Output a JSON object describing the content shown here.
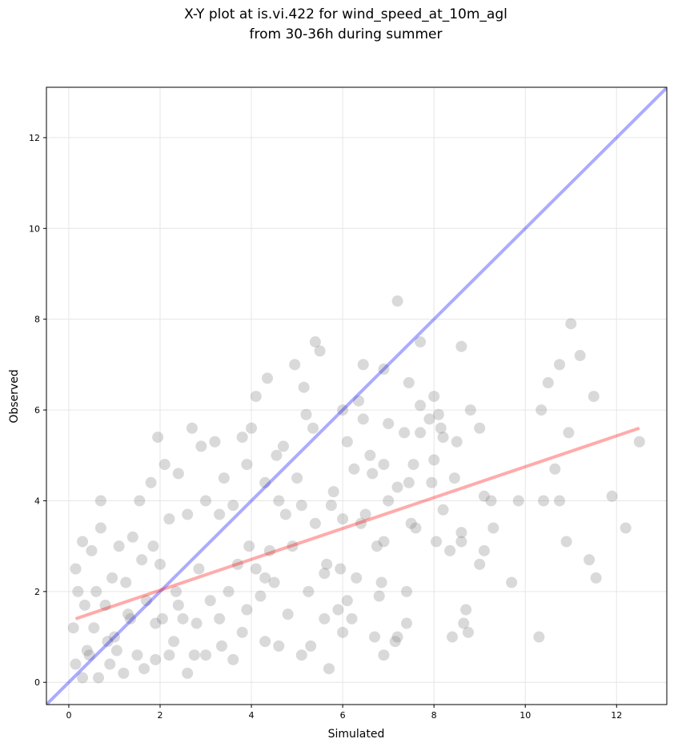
{
  "chart_data": {
    "type": "scatter",
    "title": "X-Y plot at is.vi.422 for wind_speed_at_10m_agl",
    "subtitle": "from 30-36h during summer",
    "x_label": "Simulated",
    "y_label": "Observed",
    "xlim": [
      -0.49,
      13.1
    ],
    "ylim": [
      -0.49,
      13.11
    ],
    "xticks": [
      0,
      2,
      4,
      6,
      8,
      10,
      12
    ],
    "yticks": [
      0,
      2,
      4,
      6,
      8,
      10,
      12
    ],
    "grid": true,
    "series": [
      {
        "color": "#808080",
        "x": [
          12.5,
          12.2,
          11.9,
          11.55,
          11.5,
          11.4,
          11.2,
          11.0,
          10.95,
          10.9,
          10.75,
          10.75,
          10.65,
          10.5,
          10.4,
          10.35,
          10.3,
          9.85,
          9.7,
          9.3,
          9.25,
          9.1,
          9.0,
          9.0,
          9.1,
          8.8,
          8.75,
          8.7,
          8.65,
          8.6,
          8.6,
          8.6,
          8.5,
          8.45,
          8.4,
          8.35,
          8.2,
          8.2,
          8.15,
          8.1,
          8.05,
          8.0,
          8.0,
          7.95,
          7.9,
          7.7,
          7.7,
          7.7,
          7.6,
          7.55,
          7.5,
          7.45,
          7.45,
          7.4,
          7.4,
          7.35,
          7.2,
          7.2,
          7.2,
          7.15,
          7.0,
          7.0,
          6.9,
          6.9,
          6.9,
          6.9,
          6.85,
          6.8,
          6.75,
          6.7,
          6.65,
          6.6,
          6.5,
          6.45,
          6.45,
          6.4,
          6.35,
          6.3,
          6.25,
          6.2,
          6.1,
          6.1,
          6.0,
          6.0,
          5.95,
          5.9,
          5.8,
          5.75,
          5.7,
          5.65,
          5.6,
          5.5,
          5.4,
          5.4,
          5.35,
          5.3,
          5.25,
          5.2,
          5.15,
          5.1,
          5.1,
          5.0,
          4.95,
          4.9,
          4.8,
          4.75,
          4.7,
          4.6,
          4.55,
          4.5,
          4.4,
          4.35,
          4.3,
          4.3,
          4.2,
          4.1,
          4.1,
          4.0,
          3.95,
          3.9,
          3.8,
          3.8,
          3.7,
          3.6,
          3.5,
          3.4,
          3.35,
          3.3,
          3.2,
          3.1,
          3.0,
          2.9,
          2.85,
          2.75,
          2.7,
          2.6,
          2.5,
          2.4,
          2.35,
          2.3,
          2.2,
          2.1,
          2.05,
          2.0,
          1.95,
          1.9,
          1.85,
          1.8,
          1.7,
          1.6,
          1.55,
          1.5,
          1.4,
          1.3,
          1.25,
          1.2,
          1.1,
          1.0,
          0.95,
          0.9,
          0.8,
          0.7,
          0.7,
          0.65,
          0.6,
          0.55,
          0.5,
          0.4,
          0.35,
          0.3,
          0.2,
          0.15,
          0.1,
          0.15,
          0.3,
          0.45,
          0.85,
          1.05,
          1.35,
          1.65,
          1.9,
          2.2,
          2.4,
          2.6,
          2.8,
          3.0,
          3.3,
          3.6,
          3.9,
          4.3,
          4.6,
          5.6,
          6.0
        ],
        "values": [
          5.3,
          3.4,
          4.1,
          2.3,
          6.3,
          2.7,
          7.2,
          7.9,
          5.5,
          3.1,
          7.0,
          4.0,
          4.7,
          6.6,
          4.0,
          6.0,
          1.0,
          4.0,
          2.2,
          3.4,
          4.0,
          2.9,
          2.6,
          5.6,
          4.1,
          6.0,
          1.1,
          1.6,
          1.3,
          3.1,
          3.3,
          7.4,
          5.3,
          4.5,
          1.0,
          2.9,
          3.8,
          5.4,
          5.6,
          5.9,
          3.1,
          6.3,
          4.9,
          4.4,
          5.8,
          7.5,
          5.5,
          6.1,
          3.4,
          4.8,
          3.5,
          6.6,
          4.4,
          2.0,
          1.3,
          5.5,
          8.4,
          4.3,
          1.0,
          0.9,
          5.7,
          4.0,
          6.9,
          4.8,
          3.1,
          0.6,
          2.2,
          1.9,
          3.0,
          1.0,
          4.6,
          5.0,
          3.7,
          7.0,
          5.8,
          3.5,
          6.2,
          2.3,
          4.7,
          1.4,
          5.3,
          1.8,
          3.6,
          6.0,
          2.5,
          1.6,
          4.2,
          3.9,
          0.3,
          2.6,
          1.4,
          7.3,
          7.5,
          3.5,
          5.6,
          0.8,
          2.0,
          5.9,
          6.5,
          3.9,
          0.6,
          4.5,
          7.0,
          3.0,
          1.5,
          3.7,
          5.2,
          4.0,
          5.0,
          2.2,
          2.9,
          6.7,
          0.9,
          4.4,
          1.9,
          6.3,
          2.5,
          5.6,
          3.0,
          4.8,
          5.4,
          1.1,
          2.6,
          3.9,
          2.0,
          4.5,
          0.8,
          3.7,
          5.3,
          1.8,
          4.0,
          5.2,
          2.5,
          0.6,
          5.6,
          3.7,
          1.4,
          4.6,
          2.0,
          0.9,
          3.6,
          4.8,
          1.4,
          2.6,
          5.4,
          0.5,
          3.0,
          4.4,
          1.8,
          2.7,
          4.0,
          0.6,
          3.2,
          1.5,
          2.2,
          0.2,
          3.0,
          1.0,
          2.3,
          0.4,
          1.7,
          4.0,
          3.4,
          0.1,
          2.0,
          1.2,
          2.9,
          0.7,
          1.7,
          3.1,
          2.0,
          2.5,
          1.2,
          0.4,
          0.1,
          0.6,
          0.9,
          0.7,
          1.4,
          0.3,
          1.3,
          0.6,
          1.7,
          0.2,
          1.3,
          0.6,
          1.4,
          0.5,
          1.6,
          2.3,
          0.8,
          2.4,
          1.1
        ]
      }
    ],
    "lines": [
      {
        "color": "#0000ff",
        "x": [
          -0.49,
          13.1
        ],
        "values": [
          -0.49,
          13.1
        ]
      },
      {
        "color": "#ff0000",
        "x": [
          0.15,
          12.5
        ],
        "values": [
          1.4,
          5.6
        ]
      }
    ]
  }
}
